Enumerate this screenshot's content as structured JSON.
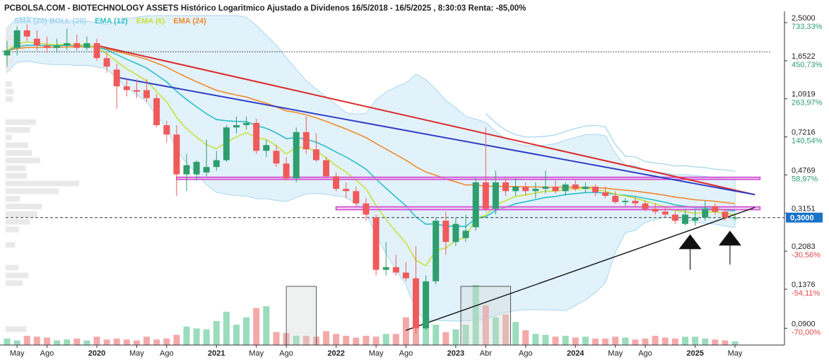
{
  "chart_data": {
    "type": "candlestick",
    "title": "PCBOLSA.COM - BIOTECHNOLOGY ASSETS Histórico Logaritmico Ajustado a Dividenos 16/5/2018 - 16/5/2025 , 8:30:03 Renta: -85,00%",
    "y_scale": "log",
    "ylim": [
      0.075,
      2.7
    ],
    "current_price": "0,3000",
    "reference_price": 0.3,
    "legend": [
      {
        "label": "SMA (20) BOLL (20)",
        "color": "#9fd3ee"
      },
      {
        "label": "EMA (12)",
        "color": "#2bbfc7"
      },
      {
        "label": "EMA (6)",
        "color": "#c8e03a"
      },
      {
        "label": "EMA (24)",
        "color": "#f08a2c"
      }
    ],
    "y_ticks": [
      {
        "value": 2.5,
        "label": "2,5000",
        "pct": "733,33%",
        "pct_color": "#2e9e6e"
      },
      {
        "value": 1.6522,
        "label": "1,6522",
        "pct": "450,73%",
        "pct_color": "#2e9e6e"
      },
      {
        "value": 1.0919,
        "label": "1,0919",
        "pct": "263,97%",
        "pct_color": "#2e9e6e"
      },
      {
        "value": 0.7216,
        "label": "0,7216",
        "pct": "140,54%",
        "pct_color": "#2e9e6e"
      },
      {
        "value": 0.4769,
        "label": "0,4769",
        "pct": "58,97%",
        "pct_color": "#2e9e6e"
      },
      {
        "value": 0.3151,
        "label": "0,3151",
        "pct": "",
        "pct_color": "#2e9e6e"
      },
      {
        "value": 0.2083,
        "label": "0,2083",
        "pct": "-30,56%",
        "pct_color": "#e0474c"
      },
      {
        "value": 0.1376,
        "label": "0,1376",
        "pct": "-54,11%",
        "pct_color": "#e0474c"
      },
      {
        "value": 0.09,
        "label": "0,0900",
        "pct": "-70,00%",
        "pct_color": "#e0474c"
      }
    ],
    "x_ticks": [
      {
        "t": 1,
        "label": "May",
        "bold": false
      },
      {
        "t": 4,
        "label": "Ago",
        "bold": false
      },
      {
        "t": 9,
        "label": "2020",
        "bold": true
      },
      {
        "t": 13,
        "label": "May",
        "bold": false
      },
      {
        "t": 16,
        "label": "Ago",
        "bold": false
      },
      {
        "t": 21,
        "label": "2021",
        "bold": true
      },
      {
        "t": 25,
        "label": "May",
        "bold": false
      },
      {
        "t": 28,
        "label": "Ago",
        "bold": false
      },
      {
        "t": 33,
        "label": "2022",
        "bold": true
      },
      {
        "t": 37,
        "label": "May",
        "bold": false
      },
      {
        "t": 40,
        "label": "Ago",
        "bold": false
      },
      {
        "t": 45,
        "label": "2023",
        "bold": true
      },
      {
        "t": 48,
        "label": "Abr",
        "bold": false
      },
      {
        "t": 52,
        "label": "Ago",
        "bold": false
      },
      {
        "t": 57,
        "label": "2024",
        "bold": true
      },
      {
        "t": 61,
        "label": "May",
        "bold": false
      },
      {
        "t": 64,
        "label": "Ago",
        "bold": false
      },
      {
        "t": 69,
        "label": "2025",
        "bold": true
      },
      {
        "t": 73,
        "label": "May",
        "bold": false
      }
    ],
    "candles": [
      {
        "o": 1.75,
        "h": 2.05,
        "l": 1.55,
        "c": 1.85
      },
      {
        "o": 1.9,
        "h": 2.4,
        "l": 1.75,
        "c": 2.3
      },
      {
        "o": 2.3,
        "h": 2.45,
        "l": 2.05,
        "c": 2.15
      },
      {
        "o": 2.1,
        "h": 2.3,
        "l": 1.85,
        "c": 1.95
      },
      {
        "o": 1.95,
        "h": 2.15,
        "l": 1.8,
        "c": 1.9
      },
      {
        "o": 1.9,
        "h": 2.1,
        "l": 1.8,
        "c": 1.95
      },
      {
        "o": 1.95,
        "h": 2.35,
        "l": 1.85,
        "c": 2.0
      },
      {
        "o": 2.0,
        "h": 2.2,
        "l": 1.85,
        "c": 1.9
      },
      {
        "o": 1.9,
        "h": 2.15,
        "l": 1.85,
        "c": 2.0
      },
      {
        "o": 2.0,
        "h": 2.1,
        "l": 1.65,
        "c": 1.7
      },
      {
        "o": 1.7,
        "h": 1.8,
        "l": 1.45,
        "c": 1.55
      },
      {
        "o": 1.5,
        "h": 1.6,
        "l": 0.98,
        "c": 1.25
      },
      {
        "o": 1.25,
        "h": 1.35,
        "l": 1.12,
        "c": 1.2
      },
      {
        "o": 1.2,
        "h": 1.35,
        "l": 1.1,
        "c": 1.18
      },
      {
        "o": 1.2,
        "h": 1.35,
        "l": 1.05,
        "c": 1.1
      },
      {
        "o": 1.1,
        "h": 1.15,
        "l": 0.8,
        "c": 0.82
      },
      {
        "o": 0.82,
        "h": 0.86,
        "l": 0.68,
        "c": 0.74
      },
      {
        "o": 0.74,
        "h": 0.82,
        "l": 0.38,
        "c": 0.48
      },
      {
        "o": 0.48,
        "h": 0.6,
        "l": 0.4,
        "c": 0.53
      },
      {
        "o": 0.48,
        "h": 0.56,
        "l": 0.45,
        "c": 0.55
      },
      {
        "o": 0.49,
        "h": 0.7,
        "l": 0.47,
        "c": 0.52
      },
      {
        "o": 0.52,
        "h": 0.62,
        "l": 0.5,
        "c": 0.56
      },
      {
        "o": 0.56,
        "h": 0.82,
        "l": 0.55,
        "c": 0.8
      },
      {
        "o": 0.8,
        "h": 0.9,
        "l": 0.75,
        "c": 0.82
      },
      {
        "o": 0.82,
        "h": 0.9,
        "l": 0.78,
        "c": 0.84
      },
      {
        "o": 0.84,
        "h": 0.88,
        "l": 0.6,
        "c": 0.62
      },
      {
        "o": 0.62,
        "h": 0.7,
        "l": 0.58,
        "c": 0.66
      },
      {
        "o": 0.62,
        "h": 0.66,
        "l": 0.52,
        "c": 0.54
      },
      {
        "o": 0.54,
        "h": 0.58,
        "l": 0.45,
        "c": 0.46
      },
      {
        "o": 0.46,
        "h": 0.8,
        "l": 0.44,
        "c": 0.76
      },
      {
        "o": 0.76,
        "h": 0.9,
        "l": 0.6,
        "c": 0.63
      },
      {
        "o": 0.63,
        "h": 0.75,
        "l": 0.55,
        "c": 0.56
      },
      {
        "o": 0.56,
        "h": 0.58,
        "l": 0.46,
        "c": 0.47
      },
      {
        "o": 0.47,
        "h": 0.49,
        "l": 0.4,
        "c": 0.41
      },
      {
        "o": 0.41,
        "h": 0.44,
        "l": 0.37,
        "c": 0.4
      },
      {
        "o": 0.4,
        "h": 0.42,
        "l": 0.34,
        "c": 0.35
      },
      {
        "o": 0.35,
        "h": 0.37,
        "l": 0.29,
        "c": 0.31
      },
      {
        "o": 0.3,
        "h": 0.31,
        "l": 0.16,
        "c": 0.17
      },
      {
        "o": 0.17,
        "h": 0.23,
        "l": 0.16,
        "c": 0.175
      },
      {
        "o": 0.175,
        "h": 0.2,
        "l": 0.16,
        "c": 0.165
      },
      {
        "o": 0.165,
        "h": 0.185,
        "l": 0.15,
        "c": 0.155
      },
      {
        "o": 0.155,
        "h": 0.22,
        "l": 0.085,
        "c": 0.09
      },
      {
        "o": 0.09,
        "h": 0.16,
        "l": 0.088,
        "c": 0.15
      },
      {
        "o": 0.15,
        "h": 0.3,
        "l": 0.145,
        "c": 0.29
      },
      {
        "o": 0.29,
        "h": 0.32,
        "l": 0.2,
        "c": 0.23
      },
      {
        "o": 0.23,
        "h": 0.3,
        "l": 0.22,
        "c": 0.28
      },
      {
        "o": 0.24,
        "h": 0.31,
        "l": 0.23,
        "c": 0.26
      },
      {
        "o": 0.27,
        "h": 0.46,
        "l": 0.26,
        "c": 0.44
      },
      {
        "o": 0.44,
        "h": 0.8,
        "l": 0.32,
        "c": 0.33
      },
      {
        "o": 0.33,
        "h": 0.5,
        "l": 0.31,
        "c": 0.44
      },
      {
        "o": 0.44,
        "h": 0.46,
        "l": 0.38,
        "c": 0.4
      },
      {
        "o": 0.4,
        "h": 0.46,
        "l": 0.38,
        "c": 0.42
      },
      {
        "o": 0.42,
        "h": 0.44,
        "l": 0.38,
        "c": 0.4
      },
      {
        "o": 0.4,
        "h": 0.44,
        "l": 0.37,
        "c": 0.41
      },
      {
        "o": 0.41,
        "h": 0.5,
        "l": 0.39,
        "c": 0.42
      },
      {
        "o": 0.42,
        "h": 0.45,
        "l": 0.39,
        "c": 0.4
      },
      {
        "o": 0.4,
        "h": 0.44,
        "l": 0.38,
        "c": 0.43
      },
      {
        "o": 0.43,
        "h": 0.45,
        "l": 0.4,
        "c": 0.41
      },
      {
        "o": 0.41,
        "h": 0.44,
        "l": 0.39,
        "c": 0.42
      },
      {
        "o": 0.42,
        "h": 0.43,
        "l": 0.38,
        "c": 0.395
      },
      {
        "o": 0.395,
        "h": 0.42,
        "l": 0.37,
        "c": 0.38
      },
      {
        "o": 0.38,
        "h": 0.4,
        "l": 0.35,
        "c": 0.355
      },
      {
        "o": 0.355,
        "h": 0.37,
        "l": 0.34,
        "c": 0.36
      },
      {
        "o": 0.36,
        "h": 0.375,
        "l": 0.34,
        "c": 0.35
      },
      {
        "o": 0.35,
        "h": 0.36,
        "l": 0.32,
        "c": 0.33
      },
      {
        "o": 0.33,
        "h": 0.35,
        "l": 0.31,
        "c": 0.32
      },
      {
        "o": 0.32,
        "h": 0.34,
        "l": 0.3,
        "c": 0.31
      },
      {
        "o": 0.31,
        "h": 0.32,
        "l": 0.28,
        "c": 0.29
      },
      {
        "o": 0.28,
        "h": 0.33,
        "l": 0.275,
        "c": 0.31
      },
      {
        "o": 0.29,
        "h": 0.33,
        "l": 0.275,
        "c": 0.3
      },
      {
        "o": 0.3,
        "h": 0.36,
        "l": 0.29,
        "c": 0.33
      },
      {
        "o": 0.34,
        "h": 0.35,
        "l": 0.31,
        "c": 0.32
      },
      {
        "o": 0.32,
        "h": 0.33,
        "l": 0.29,
        "c": 0.3
      },
      {
        "o": 0.3,
        "h": 0.31,
        "l": 0.29,
        "c": 0.3
      }
    ],
    "volume": [
      7,
      5,
      10,
      9,
      8,
      5,
      6,
      7,
      5,
      9,
      6,
      7,
      6,
      5,
      9,
      6,
      7,
      11,
      20,
      18,
      17,
      26,
      36,
      22,
      30,
      40,
      42,
      14,
      13,
      10,
      10,
      9,
      15,
      12,
      10,
      8,
      10,
      9,
      12,
      12,
      30,
      38,
      30,
      22,
      14,
      17,
      22,
      65,
      43,
      30,
      33,
      25,
      16,
      12,
      11,
      9,
      10,
      8,
      9,
      7,
      7,
      9,
      8,
      6,
      7,
      10,
      8,
      7,
      9,
      9,
      7,
      6,
      5,
      4
    ],
    "annotation_lines": [
      {
        "name": "red-downtrend-line",
        "color": "#d92b2b",
        "from": {
          "t": 9,
          "y": 1.95
        },
        "to": {
          "t": 75,
          "y": 0.385
        }
      },
      {
        "name": "blue-downtrend-line",
        "color": "#2f3fc4",
        "from": {
          "t": 11,
          "y": 1.38
        },
        "to": {
          "t": 75,
          "y": 0.385
        }
      },
      {
        "name": "black-uptrend-line",
        "color": "#111111",
        "from": {
          "t": 40,
          "y": 0.088
        },
        "to": {
          "t": 75,
          "y": 0.335
        }
      },
      {
        "name": "dotted-resistance-line",
        "color": "#222222",
        "from": {
          "t": -0.5,
          "y": 1.82
        },
        "to": {
          "t": 76.5,
          "y": 1.82
        }
      }
    ],
    "zones": [
      {
        "name": "magenta-upper-zone",
        "t0": 17,
        "t1": 75.5,
        "y_top": 0.465,
        "y_bottom": 0.455
      },
      {
        "name": "magenta-lower-zone",
        "t0": 33,
        "t1": 75.5,
        "y_top": 0.337,
        "y_bottom": 0.327
      }
    ],
    "volume_boxes": [
      {
        "name": "volume-box-2021",
        "t0": 28,
        "t1": 31
      },
      {
        "name": "volume-box-2023",
        "t0": 45.5,
        "t1": 50.5
      }
    ],
    "arrows": [
      {
        "name": "up-arrow-1",
        "t": 68.5,
        "y_tip": 0.25,
        "y_tail": 0.17
      },
      {
        "name": "up-arrow-2",
        "t": 72.5,
        "y_tip": 0.26,
        "y_tail": 0.18
      }
    ],
    "grid": false
  },
  "colors": {
    "bull": "#2e9e6e",
    "bear": "#f05a5a",
    "boll_fill": "#dff1fb",
    "boll_edge": "#9fd3ee",
    "price_badge": "#1a73c9",
    "zone_stroke": "#d14fd1",
    "zone_fill": "#f3c5f0"
  }
}
